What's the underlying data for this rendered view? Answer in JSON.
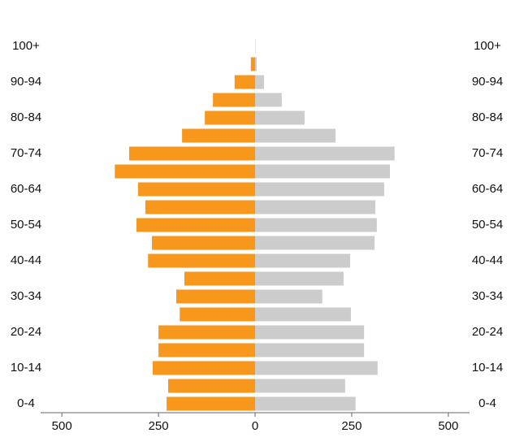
{
  "chart_data": {
    "type": "pyramid",
    "categories": [
      "0-4",
      null,
      "10-14",
      null,
      "20-24",
      null,
      "30-34",
      null,
      "40-44",
      null,
      "50-54",
      null,
      "60-64",
      null,
      "70-74",
      null,
      "80-84",
      null,
      "90-94",
      null,
      "100+"
    ],
    "series": [
      {
        "color": "#f7981d",
        "values": [
          -229,
          -225,
          -265,
          -250,
          -250,
          -195,
          -204,
          -183,
          -277,
          -267,
          -307,
          -284,
          -303,
          -363,
          -326,
          -189,
          -130,
          -109,
          -53,
          -11,
          0
        ]
      },
      {
        "color": "#cccccc",
        "values": [
          260,
          233,
          317,
          282,
          282,
          248,
          174,
          229,
          246,
          309,
          315,
          311,
          334,
          349,
          361,
          208,
          128,
          69,
          23,
          4,
          1
        ]
      }
    ],
    "xlim": [
      -555,
      555
    ],
    "xticks": [
      {
        "value": -500,
        "label": "500"
      },
      {
        "value": -250,
        "label": "250"
      },
      0,
      250,
      500
    ]
  }
}
